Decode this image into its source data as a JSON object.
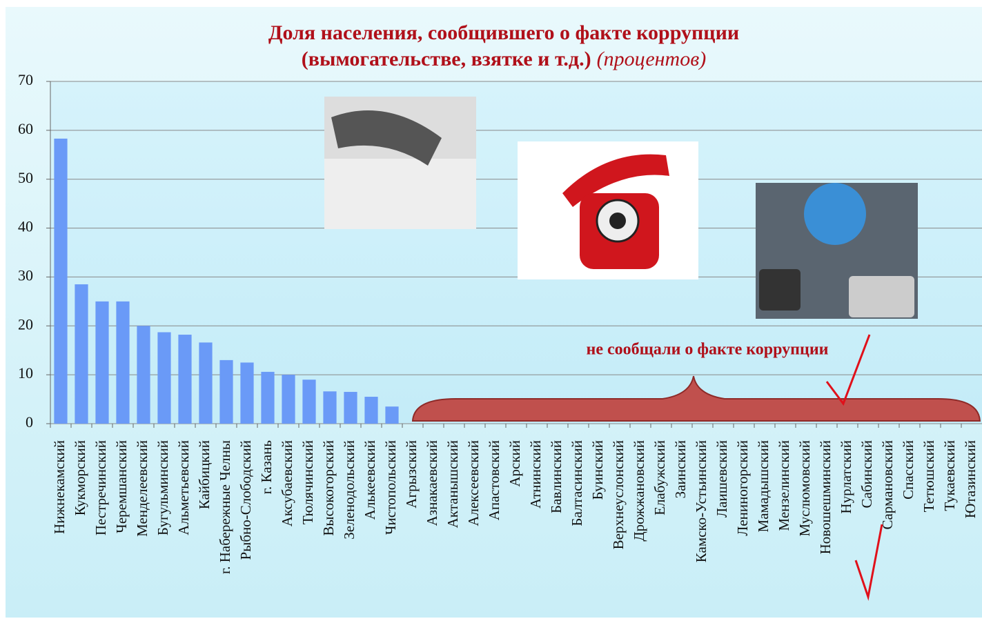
{
  "chart_data": {
    "type": "bar",
    "title": [
      "Доля населения, сообщившего о факте коррупции",
      "(вымогательстве, взятке и т.д.)"
    ],
    "subtitle": "(процентов)",
    "annotation": "не сообщали о факте коррупции",
    "categories": [
      "Нижнекамский",
      "Кукморский",
      "Пестречинский",
      "Черемшанский",
      "Менделеевский",
      "Бугульминский",
      "Альметьевский",
      "Кайбицкий",
      "г. Набережные Челны",
      "Рыбно-Слободский",
      "г. Казань",
      "Аксубаевский",
      "Тюлячинский",
      "Высокогорский",
      "Зеленодольский",
      "Алькеевский",
      "Чистопольский",
      "Агрызский",
      "Азнакаевский",
      "Актанышский",
      "Алексеевский",
      "Апастовский",
      "Арский",
      "Атнинский",
      "Бавлинский",
      "Балтасинский",
      "Буинский",
      "Верхнеуслонский",
      "Дрожжановский",
      "Елабужский",
      "Заинский",
      "Камско-Устьинский",
      "Лаишевский",
      "Лениногорский",
      "Мамадышский",
      "Мензелинский",
      "Муслюмовский",
      "Новошешминский",
      "Нурлатский",
      "Сабинский",
      "Сармановский",
      "Спасский",
      "Тетюшский",
      "Тукаевский",
      "Ютазинский"
    ],
    "values": [
      58.3,
      28.5,
      25,
      25,
      20,
      18.7,
      18.2,
      16.6,
      13,
      12.5,
      10.6,
      10,
      9,
      6.6,
      6.5,
      5.5,
      3.5,
      0,
      0,
      0,
      0,
      0,
      0,
      0,
      0,
      0,
      0,
      0,
      0,
      0,
      0,
      0,
      0,
      0,
      0,
      0,
      0,
      0,
      0,
      0,
      0,
      0,
      0,
      0,
      0
    ],
    "color": "#6a9af7",
    "ylim": [
      0,
      70
    ],
    "yticks": [
      0,
      10,
      20,
      30,
      40,
      50,
      60,
      70
    ],
    "grid": true
  }
}
